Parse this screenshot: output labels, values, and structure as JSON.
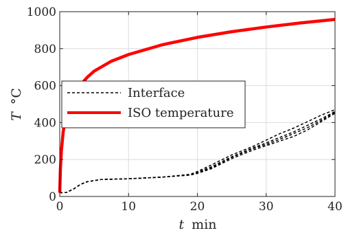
{
  "chart_data": {
    "type": "line",
    "title": "",
    "xlabel_var": "t",
    "xlabel_unit": "min",
    "ylabel_var": "T",
    "ylabel_unit": "°C",
    "xlim": [
      0,
      40
    ],
    "ylim": [
      0,
      1000
    ],
    "xticks": [
      0,
      10,
      20,
      30,
      40
    ],
    "yticks": [
      0,
      200,
      400,
      600,
      800,
      1000
    ],
    "xtick_labels": [
      "0",
      "10",
      "20",
      "30",
      "40"
    ],
    "ytick_labels": [
      "0",
      "200",
      "400",
      "600",
      "800",
      "1000"
    ],
    "grid": true,
    "legend_position": "center-left",
    "colors": {
      "iso": "#ff0000",
      "interface": "#000000"
    },
    "series": [
      {
        "name": "ISO temperature",
        "style": "solid",
        "x": [
          0,
          0.1,
          0.25,
          0.5,
          1,
          2,
          3,
          4,
          5,
          7.5,
          10,
          15,
          20,
          25,
          30,
          35,
          40
        ],
        "y": [
          20,
          150,
          250,
          349,
          453,
          544,
          603,
          645,
          678,
          732,
          768,
          822,
          861,
          892,
          917,
          939,
          958
        ]
      },
      {
        "name": "Interface",
        "style": "dashed",
        "x": [
          0,
          1,
          2,
          3,
          4,
          6,
          10,
          15,
          19,
          20,
          22,
          25,
          28,
          30,
          32,
          34,
          36,
          38,
          40
        ],
        "y": [
          20,
          22,
          40,
          65,
          80,
          92,
          96,
          105,
          118,
          130,
          160,
          215,
          262,
          290,
          320,
          350,
          385,
          420,
          460
        ]
      },
      {
        "style": "dashed",
        "x": [
          0,
          1,
          2,
          3,
          4,
          6,
          10,
          15,
          19,
          20,
          22,
          25,
          28,
          30,
          32,
          34,
          36,
          38,
          40
        ],
        "y": [
          20,
          22,
          40,
          65,
          80,
          92,
          96,
          105,
          116,
          125,
          150,
          205,
          250,
          275,
          300,
          325,
          360,
          405,
          450
        ]
      },
      {
        "style": "dashed",
        "x": [
          0,
          1,
          2,
          3,
          4,
          6,
          10,
          15,
          19,
          20,
          22,
          25,
          28,
          30,
          32,
          34,
          36,
          38,
          40
        ],
        "y": [
          20,
          22,
          40,
          65,
          80,
          92,
          96,
          105,
          120,
          135,
          170,
          225,
          270,
          305,
          340,
          370,
          405,
          440,
          470
        ]
      },
      {
        "style": "dashed",
        "x": [
          0,
          1,
          2,
          3,
          4,
          6,
          10,
          15,
          19,
          20,
          22,
          25,
          28,
          30,
          32,
          34,
          36,
          38,
          40
        ],
        "y": [
          20,
          22,
          40,
          65,
          80,
          92,
          96,
          105,
          117,
          128,
          155,
          212,
          258,
          282,
          310,
          340,
          372,
          412,
          455
        ]
      }
    ]
  }
}
